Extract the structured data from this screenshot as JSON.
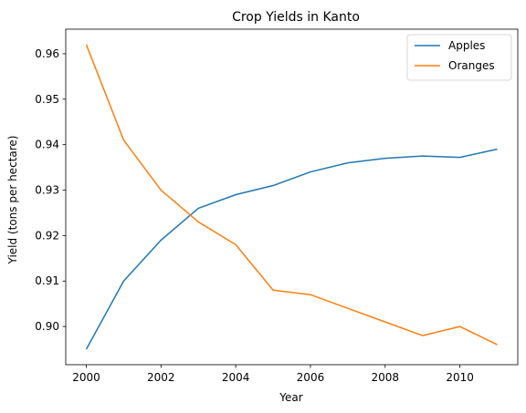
{
  "chart_data": {
    "type": "line",
    "title": "Crop Yields in Kanto",
    "xlabel": "Year",
    "ylabel": "Yield (tons per hectare)",
    "x": [
      2000,
      2001,
      2002,
      2003,
      2004,
      2005,
      2006,
      2007,
      2008,
      2009,
      2010,
      2011
    ],
    "series": [
      {
        "name": "Apples",
        "color": "#1f77b4",
        "values": [
          0.895,
          0.91,
          0.919,
          0.926,
          0.929,
          0.931,
          0.934,
          0.936,
          0.937,
          0.9375,
          0.9372,
          0.939
        ]
      },
      {
        "name": "Oranges",
        "color": "#ff7f0e",
        "values": [
          0.962,
          0.941,
          0.93,
          0.923,
          0.918,
          0.908,
          0.907,
          0.904,
          0.901,
          0.898,
          0.9,
          0.896
        ]
      }
    ],
    "xlim": [
      1999.45,
      2011.55
    ],
    "ylim": [
      0.8916,
      0.9654
    ],
    "xticks": [
      2000,
      2002,
      2004,
      2006,
      2008,
      2010
    ],
    "yticks": [
      0.9,
      0.91,
      0.92,
      0.93,
      0.94,
      0.95,
      0.96
    ],
    "ytick_labels": [
      "0.90",
      "0.91",
      "0.92",
      "0.93",
      "0.94",
      "0.95",
      "0.96"
    ],
    "legend_position": "top-right",
    "grid": false
  }
}
